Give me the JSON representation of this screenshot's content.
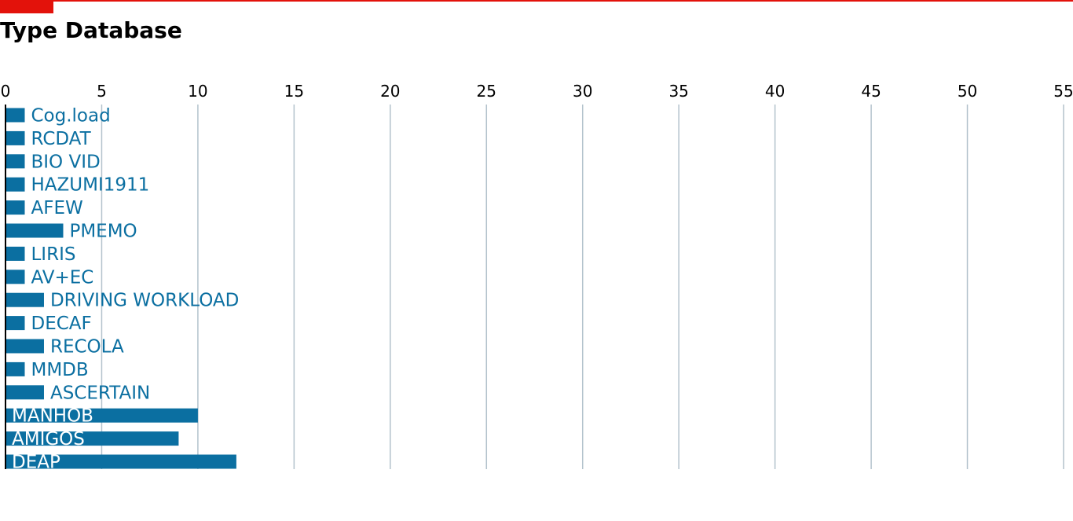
{
  "colors": {
    "accent": "#e3120b",
    "bar": "#0b6fa1",
    "gridline": "#b3c2cc",
    "label_outside": "#0b6fa1",
    "label_inside": "#ffffff",
    "axis": "#000000"
  },
  "chart_data": {
    "type": "bar",
    "orientation": "horizontal",
    "title": "Type Database",
    "xlabel": "",
    "ylabel": "",
    "xlim": [
      0,
      55
    ],
    "xticks": [
      0,
      5,
      10,
      15,
      20,
      25,
      30,
      35,
      40,
      45,
      50,
      55
    ],
    "x_axis_position": "top",
    "grid": true,
    "legend": "none",
    "categories": [
      "Cog.load",
      "RCDAT",
      "BIO VID",
      "HAZUMI1911",
      "AFEW",
      "PMEMO",
      "LIRIS",
      "AV+EC",
      "DRIVING WORKLOAD",
      "DECAF",
      "RECOLA",
      "MMDB",
      "ASCERTAIN",
      "MANHOB",
      "AMIGOS",
      "DEAP"
    ],
    "values": [
      1,
      1,
      1,
      1,
      1,
      3,
      1,
      1,
      2,
      1,
      2,
      1,
      2,
      10,
      9,
      12
    ]
  }
}
